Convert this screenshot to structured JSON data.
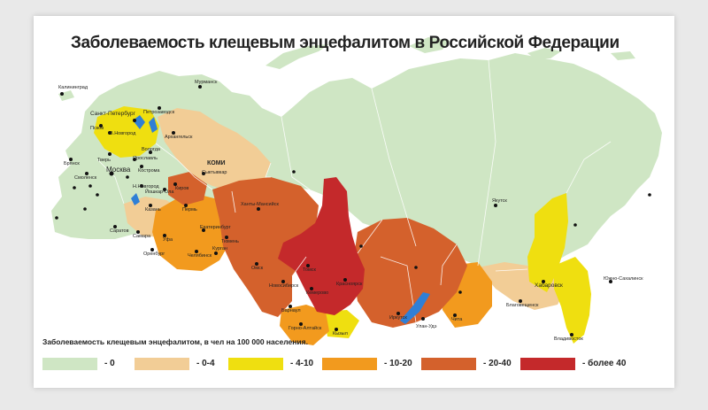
{
  "title": "Заболеваемость клещевым энцефалитом в Российской Федерации",
  "legend": {
    "caption": "Заболеваемость клещевым энцефалитом, в чел на 100 000 населения.",
    "items": [
      {
        "label": "- 0",
        "color": "#cfe6c4"
      },
      {
        "label": "- 0-4",
        "color": "#f2cd96"
      },
      {
        "label": "- 4-10",
        "color": "#efdf10"
      },
      {
        "label": "- 10-20",
        "color": "#f29a1e"
      },
      {
        "label": "- 20-40",
        "color": "#d4612c"
      },
      {
        "label": "- более 40",
        "color": "#c4292b"
      }
    ]
  },
  "colors": {
    "water": "#2f7fd6",
    "city_dot": "#111111",
    "border": "#ffffff"
  },
  "cities": {
    "kaliningrad": "Калининград",
    "murmansk": "Мурманск",
    "spb": "Санкт-Петербург",
    "petrozavodsk": "Петрозаводск",
    "pskov": "Псков",
    "novgorod": "В.Новгород",
    "arkhangelsk": "Архангельск",
    "vologda": "Вологда",
    "tver": "Тверь",
    "yaroslavl": "Ярославль",
    "kostroma": "Кострома",
    "bryansk": "Брянск",
    "smolensk": "Смоленск",
    "moskva": "Москва",
    "nnovgorod": "Н.Новгород",
    "yoshkar_ola": "Йошкар-Ола",
    "kirov": "Киров",
    "komi": "КОМИ",
    "syktyvkar": "Сыктывкар",
    "kazan": "Казань",
    "saratov": "Саратов",
    "samara": "Самара",
    "ufa": "Уфа",
    "orenburg": "Оренбург",
    "perm": "Пермь",
    "yekaterinburg": "Екатеринбург",
    "chelyabinsk": "Челябинск",
    "kurgan": "Курган",
    "tyumen": "Тюмень",
    "khanty": "Ханты-Мансийск",
    "omsk": "Омск",
    "tomsk": "Томск",
    "novosibirsk": "Новосибирск",
    "barnaul": "Барнаул",
    "gorno": "Горно-Алтайск",
    "kemerovo": "Кемерово",
    "krasnoyarsk": "Красноярск",
    "kyzyl": "Кызыл",
    "irkutsk": "Иркутск",
    "ulan_ude": "Улан-Удэ",
    "chita": "Чита",
    "yakutsk": "Якутск",
    "blagoveshchensk": "Благовещенск",
    "khabarovsk": "Хабаровск",
    "vladivostok": "Владивосток",
    "yuzhno": "Южно-Сахалинск"
  }
}
